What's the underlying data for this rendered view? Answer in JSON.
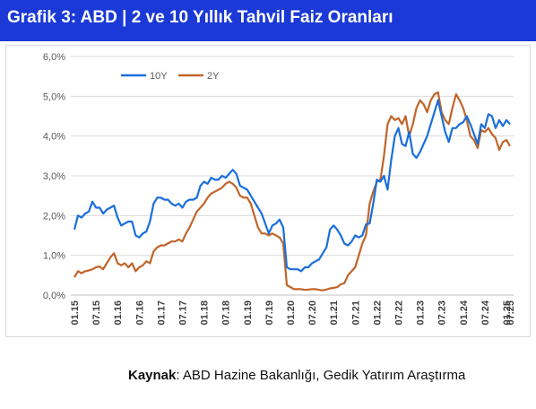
{
  "header": {
    "title": "Grafik 3: ABD | 2 ve 10 Yıllık Tahvil Faiz Oranları",
    "background_color": "#1a39d6",
    "text_color": "#ffffff"
  },
  "source": {
    "label": "Kaynak",
    "text": ": ABD Hazine Bakanlığı, Gedik Yatırım Araştırma"
  },
  "chart_data": {
    "type": "line",
    "title": "",
    "xlabel": "",
    "ylabel": "",
    "ylim": [
      0,
      6
    ],
    "y_ticks": [
      "0,0%",
      "1,0%",
      "2,0%",
      "3,0%",
      "4,0%",
      "5,0%",
      "6,0%"
    ],
    "x_tick_labels": [
      "01.15",
      "07.15",
      "01.16",
      "07.16",
      "01.17",
      "07.17",
      "01.18",
      "07.18",
      "01.19",
      "07.19",
      "01.20",
      "07.20",
      "01.21",
      "07.21",
      "01.22",
      "07.22",
      "01.23",
      "07.23",
      "01.24",
      "07.24",
      "01.25",
      "07.25"
    ],
    "grid": "horizontal",
    "legend_position": "top-left",
    "series": [
      {
        "name": "10Y",
        "color": "#1a6fdc",
        "values": [
          1.65,
          2.0,
          1.95,
          2.05,
          2.1,
          2.35,
          2.2,
          2.2,
          2.05,
          2.15,
          2.2,
          2.25,
          1.95,
          1.75,
          1.8,
          1.85,
          1.85,
          1.5,
          1.45,
          1.55,
          1.6,
          1.85,
          2.3,
          2.45,
          2.45,
          2.4,
          2.4,
          2.3,
          2.25,
          2.3,
          2.2,
          2.35,
          2.4,
          2.4,
          2.45,
          2.75,
          2.85,
          2.8,
          2.95,
          2.9,
          2.9,
          3.0,
          2.95,
          3.05,
          3.15,
          3.05,
          2.75,
          2.7,
          2.65,
          2.5,
          2.35,
          2.2,
          2.05,
          1.8,
          1.55,
          1.75,
          1.8,
          1.9,
          1.7,
          0.7,
          0.65,
          0.65,
          0.65,
          0.6,
          0.7,
          0.7,
          0.8,
          0.85,
          0.9,
          1.05,
          1.2,
          1.65,
          1.75,
          1.65,
          1.5,
          1.3,
          1.25,
          1.35,
          1.5,
          1.45,
          1.5,
          1.78,
          1.8,
          2.3,
          2.9,
          2.85,
          3.0,
          2.65,
          3.4,
          4.0,
          4.2,
          3.8,
          3.75,
          4.1,
          3.55,
          3.45,
          3.6,
          3.8,
          4.0,
          4.3,
          4.6,
          4.9,
          4.5,
          4.1,
          3.85,
          4.2,
          4.2,
          4.3,
          4.35,
          4.5,
          4.3,
          4.05,
          3.8,
          4.3,
          4.2,
          4.55,
          4.5,
          4.2,
          4.4,
          4.25,
          4.4,
          4.3
        ]
      },
      {
        "name": "2Y",
        "color": "#c0652a",
        "values": [
          0.45,
          0.6,
          0.55,
          0.6,
          0.62,
          0.65,
          0.7,
          0.72,
          0.65,
          0.8,
          0.95,
          1.05,
          0.8,
          0.75,
          0.8,
          0.7,
          0.8,
          0.6,
          0.7,
          0.75,
          0.85,
          0.8,
          1.1,
          1.2,
          1.25,
          1.25,
          1.3,
          1.35,
          1.35,
          1.4,
          1.35,
          1.55,
          1.7,
          1.9,
          2.1,
          2.2,
          2.3,
          2.45,
          2.55,
          2.6,
          2.65,
          2.7,
          2.8,
          2.85,
          2.8,
          2.7,
          2.5,
          2.45,
          2.45,
          2.3,
          2.0,
          1.7,
          1.55,
          1.55,
          1.5,
          1.55,
          1.5,
          1.45,
          1.3,
          0.25,
          0.2,
          0.15,
          0.15,
          0.15,
          0.13,
          0.14,
          0.15,
          0.15,
          0.13,
          0.12,
          0.14,
          0.17,
          0.18,
          0.2,
          0.27,
          0.3,
          0.5,
          0.6,
          0.7,
          1.0,
          1.3,
          1.5,
          2.3,
          2.6,
          2.85,
          2.9,
          3.5,
          4.3,
          4.5,
          4.4,
          4.45,
          4.3,
          4.5,
          4.0,
          4.3,
          4.7,
          4.9,
          4.8,
          4.6,
          4.9,
          5.05,
          5.1,
          4.6,
          4.4,
          4.3,
          4.7,
          5.05,
          4.9,
          4.7,
          4.4,
          4.0,
          3.9,
          3.7,
          4.15,
          4.1,
          4.2,
          4.05,
          3.95,
          3.65,
          3.85,
          3.9,
          3.75
        ]
      }
    ]
  }
}
